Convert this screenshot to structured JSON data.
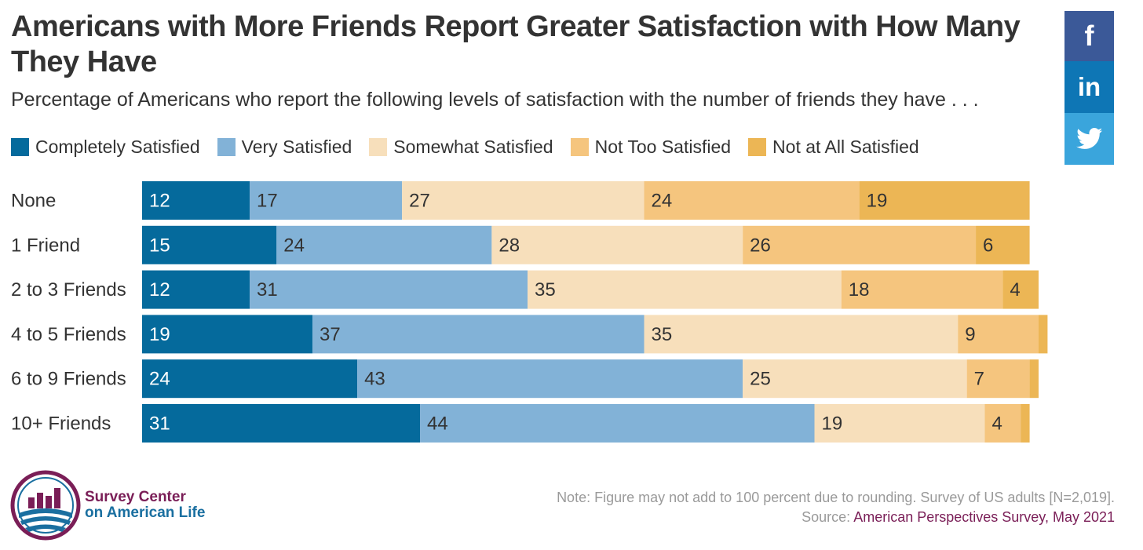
{
  "title": "Americans with More Friends Report Greater Satisfaction with How Many They Have",
  "subtitle": "Percentage of Americans who report the following levels of satisfaction with the number of friends they have . . .",
  "social": {
    "facebook_label": "f",
    "linkedin_label": "in",
    "twitter_icon": "twitter-bird-icon"
  },
  "chart_data": {
    "type": "bar",
    "orientation": "horizontal",
    "stacked": true,
    "title": "Americans with More Friends Report Greater Satisfaction with How Many They Have",
    "subtitle": "Percentage of Americans who report the following levels of satisfaction with the number of friends they have . . .",
    "xlabel": "",
    "ylabel": "",
    "xlim": [
      0,
      100
    ],
    "grid": false,
    "legend_position": "top-left",
    "categories": [
      "None",
      "1 Friend",
      "2 to 3 Friends",
      "4 to 5 Friends",
      "6 to 9 Friends",
      "10+ Friends"
    ],
    "series": [
      {
        "name": "Completely Satisfied",
        "color": "#056a9c",
        "label_color": "#ffffff",
        "values": [
          12,
          15,
          12,
          19,
          24,
          31
        ]
      },
      {
        "name": "Very Satisfied",
        "color": "#82b2d7",
        "label_color": "#333333",
        "values": [
          17,
          24,
          31,
          37,
          43,
          44
        ]
      },
      {
        "name": "Somewhat Satisfied",
        "color": "#f7dfbb",
        "label_color": "#333333",
        "values": [
          27,
          28,
          35,
          35,
          25,
          19
        ]
      },
      {
        "name": "Not Too Satisfied",
        "color": "#f5c57e",
        "label_color": "#333333",
        "values": [
          24,
          26,
          18,
          9,
          7,
          4
        ]
      },
      {
        "name": "Not at All Satisfied",
        "color": "#ecb655",
        "label_color": "#333333",
        "values": [
          19,
          6,
          4,
          1,
          1,
          1
        ]
      }
    ],
    "hidden_labels_below": 3
  },
  "footer": {
    "org_line1": "Survey Center",
    "org_line2": "on American Life",
    "note": "Note: Figure may not add to 100 percent due to rounding. Survey of US adults [N=2,019].",
    "source_prefix": "Source:",
    "source_link": "American Perspectives Survey, May 2021"
  }
}
